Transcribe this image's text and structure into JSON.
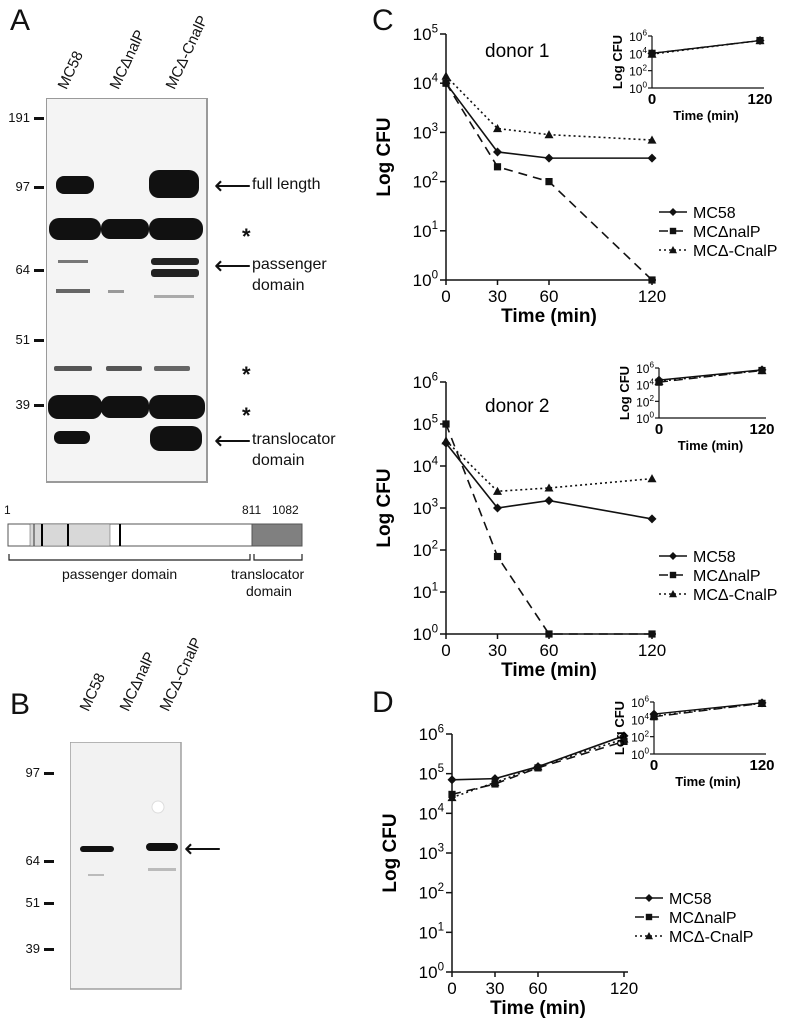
{
  "panels": {
    "A": {
      "letter": "A",
      "lanes": [
        "MC58",
        "MCΔnalP",
        "MCΔ-CnalP"
      ],
      "mw_markers": [
        "191",
        "97",
        "64",
        "51",
        "39"
      ],
      "annotations": {
        "full_length": "full length",
        "passenger_1": "passenger",
        "passenger_2": "domain",
        "translocator_1": "translocator",
        "translocator_2": "domain",
        "star": "*"
      },
      "domain_map": {
        "pos_start": "1",
        "pos_mid": "811",
        "pos_end": "1082",
        "passenger_label": "passenger domain",
        "translocator_label_1": "translocator",
        "translocator_label_2": "domain"
      }
    },
    "B": {
      "letter": "B",
      "lanes": [
        "MC58",
        "MCΔnalP",
        "MCΔ-CnalP"
      ],
      "mw_markers": [
        "97",
        "64",
        "51",
        "39"
      ]
    },
    "C": {
      "letter": "C"
    },
    "D": {
      "letter": "D"
    }
  },
  "chart_data": [
    {
      "id": "C-donor1",
      "type": "line",
      "title": "donor 1",
      "xlabel": "Time (min)",
      "ylabel": "Log CFU",
      "y_scale": "log",
      "x": [
        0,
        30,
        60,
        120
      ],
      "xticks": [
        "0",
        "30",
        "60",
        "120"
      ],
      "ylim_exp": [
        0,
        5
      ],
      "series": [
        {
          "name": "MC58",
          "style": "solid",
          "marker": "diamond",
          "values": [
            10000,
            400,
            300,
            300
          ]
        },
        {
          "name": "MCΔnalP",
          "style": "dashed",
          "marker": "square",
          "values": [
            10000,
            200,
            100,
            1
          ]
        },
        {
          "name": "MCΔ-CnalP",
          "style": "dotted",
          "marker": "triangle",
          "values": [
            14000,
            1200,
            900,
            700
          ]
        }
      ],
      "inset": {
        "xlabel": "Time (min)",
        "ylabel": "Log CFU",
        "x": [
          0,
          120
        ],
        "xticks": [
          "0",
          "120"
        ],
        "ylim_exp": [
          0,
          6
        ],
        "series": [
          {
            "name": "MC58",
            "values": [
              10000,
              300000
            ]
          },
          {
            "name": "MCΔnalP",
            "values": [
              10000,
              300000
            ]
          },
          {
            "name": "MCΔ-CnalP",
            "values": [
              8000,
              300000
            ]
          }
        ]
      }
    },
    {
      "id": "C-donor2",
      "type": "line",
      "title": "donor 2",
      "xlabel": "Time (min)",
      "ylabel": "Log CFU",
      "y_scale": "log",
      "x": [
        0,
        30,
        60,
        120
      ],
      "xticks": [
        "0",
        "30",
        "60",
        "120"
      ],
      "ylim_exp": [
        0,
        6
      ],
      "series": [
        {
          "name": "MC58",
          "style": "solid",
          "marker": "diamond",
          "values": [
            35000,
            1000,
            1500,
            550
          ]
        },
        {
          "name": "MCΔnalP",
          "style": "dashed",
          "marker": "square",
          "values": [
            100000,
            70,
            1,
            1
          ]
        },
        {
          "name": "MCΔ-CnalP",
          "style": "dotted",
          "marker": "triangle",
          "values": [
            40000,
            2500,
            3000,
            5000
          ]
        }
      ],
      "inset": {
        "xlabel": "Time (min)",
        "ylabel": "Log CFU",
        "x": [
          0,
          120
        ],
        "xticks": [
          "0",
          "120"
        ],
        "ylim_exp": [
          0,
          6
        ],
        "series": [
          {
            "name": "MC58",
            "values": [
              35000,
              600000
            ]
          },
          {
            "name": "MCΔnalP",
            "values": [
              20000,
              500000
            ]
          },
          {
            "name": "MCΔ-CnalP",
            "values": [
              25000,
              500000
            ]
          }
        ]
      }
    },
    {
      "id": "D",
      "type": "line",
      "title": "",
      "xlabel": "Time (min)",
      "ylabel": "Log CFU",
      "y_scale": "log",
      "x": [
        0,
        30,
        60,
        120
      ],
      "xticks": [
        "0",
        "30",
        "60",
        "120"
      ],
      "ylim_exp": [
        0,
        6
      ],
      "series": [
        {
          "name": "MC58",
          "style": "solid",
          "marker": "diamond",
          "values": [
            70000,
            75000,
            150000,
            900000
          ]
        },
        {
          "name": "MCΔnalP",
          "style": "dashed",
          "marker": "square",
          "values": [
            30000,
            55000,
            140000,
            650000
          ]
        },
        {
          "name": "MCΔ-CnalP",
          "style": "dotted",
          "marker": "triangle",
          "values": [
            25000,
            60000,
            150000,
            750000
          ]
        }
      ],
      "inset": {
        "xlabel": "Time (min)",
        "ylabel": "Log CFU",
        "x": [
          0,
          120
        ],
        "xticks": [
          "0",
          "120"
        ],
        "ylim_exp": [
          0,
          6
        ],
        "series": [
          {
            "name": "MC58",
            "values": [
              40000,
              800000
            ]
          },
          {
            "name": "MCΔnalP",
            "values": [
              20000,
              700000
            ]
          },
          {
            "name": "MCΔ-CnalP",
            "values": [
              25000,
              700000
            ]
          }
        ]
      }
    }
  ]
}
